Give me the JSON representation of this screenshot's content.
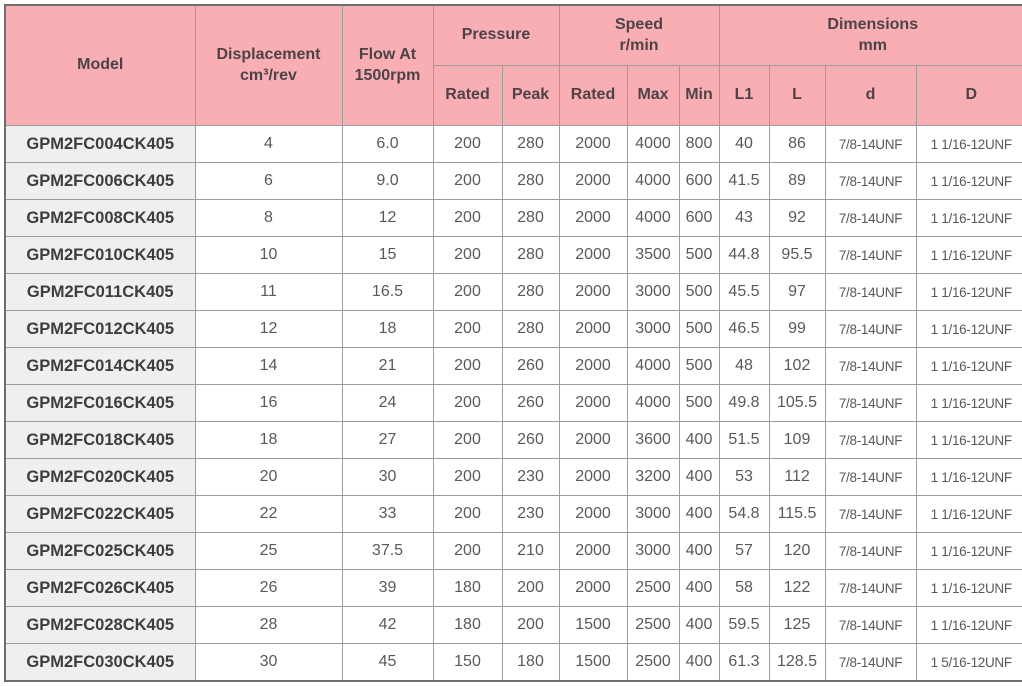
{
  "colors": {
    "header_bg": "#f9aeb4",
    "model_cell_bg": "#efefef",
    "grid_border": "#9c9c9c",
    "outer_border": "#6e6e6e",
    "header_text": "#4c4347",
    "body_text": "#595959"
  },
  "table": {
    "header": {
      "model": "Model",
      "displacement_line1": "Displacement",
      "displacement_line2": "cm³/rev",
      "flow_line1": "Flow At",
      "flow_line2": "1500rpm",
      "pressure": "Pressure",
      "speed_line1": "Speed",
      "speed_line2": "r/min",
      "dimensions_line1": "Dimensions",
      "dimensions_line2": "mm",
      "sub": {
        "pressure_rated": "Rated",
        "pressure_peak": "Peak",
        "speed_rated": "Rated",
        "speed_max": "Max",
        "speed_min": "Min",
        "l1": "L1",
        "l": "L",
        "d": "d",
        "D": "D"
      }
    },
    "row_keys": [
      "model",
      "displacement",
      "flow",
      "pressure_rated",
      "pressure_peak",
      "speed_rated",
      "speed_max",
      "speed_min",
      "l1",
      "l",
      "d",
      "D"
    ],
    "rows": [
      {
        "model": "GPM2FC004CK405",
        "displacement": "4",
        "flow": "6.0",
        "pressure_rated": "200",
        "pressure_peak": "280",
        "speed_rated": "2000",
        "speed_max": "4000",
        "speed_min": "800",
        "l1": "40",
        "l": "86",
        "d": "7/8-14UNF",
        "D": "1 1/16-12UNF"
      },
      {
        "model": "GPM2FC006CK405",
        "displacement": "6",
        "flow": "9.0",
        "pressure_rated": "200",
        "pressure_peak": "280",
        "speed_rated": "2000",
        "speed_max": "4000",
        "speed_min": "600",
        "l1": "41.5",
        "l": "89",
        "d": "7/8-14UNF",
        "D": "1 1/16-12UNF"
      },
      {
        "model": "GPM2FC008CK405",
        "displacement": "8",
        "flow": "12",
        "pressure_rated": "200",
        "pressure_peak": "280",
        "speed_rated": "2000",
        "speed_max": "4000",
        "speed_min": "600",
        "l1": "43",
        "l": "92",
        "d": "7/8-14UNF",
        "D": "1 1/16-12UNF"
      },
      {
        "model": "GPM2FC010CK405",
        "displacement": "10",
        "flow": "15",
        "pressure_rated": "200",
        "pressure_peak": "280",
        "speed_rated": "2000",
        "speed_max": "3500",
        "speed_min": "500",
        "l1": "44.8",
        "l": "95.5",
        "d": "7/8-14UNF",
        "D": "1 1/16-12UNF"
      },
      {
        "model": "GPM2FC011CK405",
        "displacement": "11",
        "flow": "16.5",
        "pressure_rated": "200",
        "pressure_peak": "280",
        "speed_rated": "2000",
        "speed_max": "3000",
        "speed_min": "500",
        "l1": "45.5",
        "l": "97",
        "d": "7/8-14UNF",
        "D": "1 1/16-12UNF"
      },
      {
        "model": "GPM2FC012CK405",
        "displacement": "12",
        "flow": "18",
        "pressure_rated": "200",
        "pressure_peak": "280",
        "speed_rated": "2000",
        "speed_max": "3000",
        "speed_min": "500",
        "l1": "46.5",
        "l": "99",
        "d": "7/8-14UNF",
        "D": "1 1/16-12UNF"
      },
      {
        "model": "GPM2FC014CK405",
        "displacement": "14",
        "flow": "21",
        "pressure_rated": "200",
        "pressure_peak": "260",
        "speed_rated": "2000",
        "speed_max": "4000",
        "speed_min": "500",
        "l1": "48",
        "l": "102",
        "d": "7/8-14UNF",
        "D": "1 1/16-12UNF"
      },
      {
        "model": "GPM2FC016CK405",
        "displacement": "16",
        "flow": "24",
        "pressure_rated": "200",
        "pressure_peak": "260",
        "speed_rated": "2000",
        "speed_max": "4000",
        "speed_min": "500",
        "l1": "49.8",
        "l": "105.5",
        "d": "7/8-14UNF",
        "D": "1 1/16-12UNF"
      },
      {
        "model": "GPM2FC018CK405",
        "displacement": "18",
        "flow": "27",
        "pressure_rated": "200",
        "pressure_peak": "260",
        "speed_rated": "2000",
        "speed_max": "3600",
        "speed_min": "400",
        "l1": "51.5",
        "l": "109",
        "d": "7/8-14UNF",
        "D": "1 1/16-12UNF"
      },
      {
        "model": "GPM2FC020CK405",
        "displacement": "20",
        "flow": "30",
        "pressure_rated": "200",
        "pressure_peak": "230",
        "speed_rated": "2000",
        "speed_max": "3200",
        "speed_min": "400",
        "l1": "53",
        "l": "112",
        "d": "7/8-14UNF",
        "D": "1 1/16-12UNF"
      },
      {
        "model": "GPM2FC022CK405",
        "displacement": "22",
        "flow": "33",
        "pressure_rated": "200",
        "pressure_peak": "230",
        "speed_rated": "2000",
        "speed_max": "3000",
        "speed_min": "400",
        "l1": "54.8",
        "l": "115.5",
        "d": "7/8-14UNF",
        "D": "1 1/16-12UNF"
      },
      {
        "model": "GPM2FC025CK405",
        "displacement": "25",
        "flow": "37.5",
        "pressure_rated": "200",
        "pressure_peak": "210",
        "speed_rated": "2000",
        "speed_max": "3000",
        "speed_min": "400",
        "l1": "57",
        "l": "120",
        "d": "7/8-14UNF",
        "D": "1 1/16-12UNF"
      },
      {
        "model": "GPM2FC026CK405",
        "displacement": "26",
        "flow": "39",
        "pressure_rated": "180",
        "pressure_peak": "200",
        "speed_rated": "2000",
        "speed_max": "2500",
        "speed_min": "400",
        "l1": "58",
        "l": "122",
        "d": "7/8-14UNF",
        "D": "1 1/16-12UNF"
      },
      {
        "model": "GPM2FC028CK405",
        "displacement": "28",
        "flow": "42",
        "pressure_rated": "180",
        "pressure_peak": "200",
        "speed_rated": "1500",
        "speed_max": "2500",
        "speed_min": "400",
        "l1": "59.5",
        "l": "125",
        "d": "7/8-14UNF",
        "D": "1 1/16-12UNF"
      },
      {
        "model": "GPM2FC030CK405",
        "displacement": "30",
        "flow": "45",
        "pressure_rated": "150",
        "pressure_peak": "180",
        "speed_rated": "1500",
        "speed_max": "2500",
        "speed_min": "400",
        "l1": "61.3",
        "l": "128.5",
        "d": "7/8-14UNF",
        "D": "1 5/16-12UNF"
      }
    ]
  }
}
